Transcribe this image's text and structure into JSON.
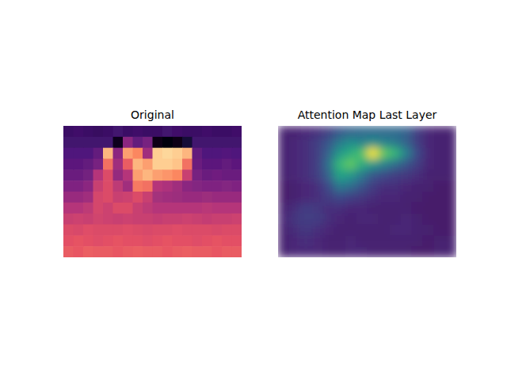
{
  "chart_data": [
    {
      "type": "heatmap",
      "title": "Original",
      "color": "magma",
      "zlim": [
        0,
        1
      ],
      "tick_labels": false,
      "cells": [
        [
          0.2,
          0.21,
          0.2,
          0.19,
          0.2,
          0.22,
          0.2,
          0.21,
          0.2,
          0.2,
          0.22,
          0.21,
          0.2,
          0.2,
          0.21,
          0.2,
          0.2,
          0.21
        ],
        [
          0.22,
          0.22,
          0.22,
          0.22,
          0.22,
          0.05,
          0.4,
          0.3,
          0.35,
          0.03,
          0.02,
          0.03,
          0.1,
          0.22,
          0.22,
          0.22,
          0.22,
          0.22
        ],
        [
          0.25,
          0.25,
          0.25,
          0.3,
          0.85,
          0.4,
          0.8,
          0.75,
          0.45,
          0.9,
          0.92,
          0.9,
          0.85,
          0.3,
          0.25,
          0.25,
          0.26,
          0.25
        ],
        [
          0.28,
          0.28,
          0.3,
          0.35,
          0.7,
          0.45,
          0.65,
          0.85,
          0.8,
          0.9,
          0.9,
          0.88,
          0.7,
          0.32,
          0.28,
          0.28,
          0.3,
          0.28
        ],
        [
          0.32,
          0.32,
          0.34,
          0.5,
          0.6,
          0.42,
          0.5,
          0.8,
          0.85,
          0.8,
          0.78,
          0.75,
          0.55,
          0.35,
          0.32,
          0.33,
          0.32,
          0.32
        ],
        [
          0.37,
          0.37,
          0.4,
          0.55,
          0.6,
          0.52,
          0.45,
          0.72,
          0.7,
          0.5,
          0.48,
          0.45,
          0.4,
          0.38,
          0.37,
          0.37,
          0.38,
          0.37
        ],
        [
          0.43,
          0.43,
          0.45,
          0.58,
          0.6,
          0.55,
          0.56,
          0.6,
          0.55,
          0.46,
          0.45,
          0.44,
          0.43,
          0.43,
          0.44,
          0.43,
          0.43,
          0.43
        ],
        [
          0.5,
          0.5,
          0.52,
          0.58,
          0.56,
          0.6,
          0.6,
          0.55,
          0.52,
          0.5,
          0.5,
          0.5,
          0.5,
          0.5,
          0.51,
          0.5,
          0.5,
          0.5
        ],
        [
          0.55,
          0.56,
          0.55,
          0.57,
          0.56,
          0.55,
          0.56,
          0.55,
          0.55,
          0.54,
          0.55,
          0.55,
          0.56,
          0.55,
          0.54,
          0.55,
          0.55,
          0.56
        ],
        [
          0.6,
          0.59,
          0.61,
          0.6,
          0.6,
          0.6,
          0.61,
          0.6,
          0.59,
          0.6,
          0.6,
          0.61,
          0.6,
          0.6,
          0.6,
          0.59,
          0.6,
          0.6
        ],
        [
          0.62,
          0.63,
          0.62,
          0.61,
          0.62,
          0.63,
          0.62,
          0.62,
          0.61,
          0.62,
          0.63,
          0.62,
          0.62,
          0.61,
          0.62,
          0.63,
          0.62,
          0.62
        ],
        [
          0.65,
          0.64,
          0.66,
          0.65,
          0.65,
          0.64,
          0.65,
          0.66,
          0.65,
          0.65,
          0.64,
          0.65,
          0.66,
          0.65,
          0.65,
          0.64,
          0.65,
          0.65
        ]
      ]
    },
    {
      "type": "heatmap",
      "title": "Attention Map Last Layer",
      "color": "viridis",
      "zlim": [
        0,
        1
      ],
      "tick_labels": false,
      "cells": [
        [
          0.1,
          0.1,
          0.12,
          0.15,
          0.2,
          0.3,
          0.35,
          0.38,
          0.38,
          0.38,
          0.38,
          0.35,
          0.2,
          0.12,
          0.1,
          0.1
        ],
        [
          0.1,
          0.12,
          0.15,
          0.2,
          0.3,
          0.45,
          0.55,
          0.5,
          0.55,
          0.5,
          0.45,
          0.35,
          0.2,
          0.12,
          0.1,
          0.1
        ],
        [
          0.1,
          0.12,
          0.15,
          0.2,
          0.35,
          0.6,
          0.7,
          0.8,
          1.0,
          0.85,
          0.75,
          0.5,
          0.25,
          0.12,
          0.1,
          0.1
        ],
        [
          0.1,
          0.12,
          0.15,
          0.2,
          0.4,
          0.75,
          0.85,
          0.7,
          0.6,
          0.5,
          0.4,
          0.3,
          0.2,
          0.12,
          0.1,
          0.1
        ],
        [
          0.1,
          0.12,
          0.15,
          0.2,
          0.35,
          0.65,
          0.6,
          0.45,
          0.3,
          0.25,
          0.2,
          0.18,
          0.15,
          0.1,
          0.1,
          0.1
        ],
        [
          0.08,
          0.1,
          0.12,
          0.15,
          0.25,
          0.45,
          0.4,
          0.3,
          0.2,
          0.15,
          0.15,
          0.12,
          0.1,
          0.1,
          0.08,
          0.08
        ],
        [
          0.08,
          0.1,
          0.12,
          0.15,
          0.2,
          0.25,
          0.22,
          0.18,
          0.15,
          0.12,
          0.12,
          0.1,
          0.1,
          0.08,
          0.08,
          0.08
        ],
        [
          0.1,
          0.15,
          0.2,
          0.18,
          0.15,
          0.15,
          0.12,
          0.12,
          0.1,
          0.1,
          0.1,
          0.1,
          0.08,
          0.08,
          0.08,
          0.08
        ],
        [
          0.12,
          0.18,
          0.2,
          0.2,
          0.15,
          0.12,
          0.1,
          0.12,
          0.12,
          0.1,
          0.1,
          0.12,
          0.1,
          0.08,
          0.08,
          0.08
        ],
        [
          0.1,
          0.15,
          0.18,
          0.15,
          0.12,
          0.1,
          0.1,
          0.1,
          0.1,
          0.1,
          0.12,
          0.12,
          0.1,
          0.1,
          0.08,
          0.08
        ],
        [
          0.1,
          0.12,
          0.15,
          0.12,
          0.1,
          0.1,
          0.12,
          0.1,
          0.1,
          0.1,
          0.1,
          0.1,
          0.1,
          0.08,
          0.1,
          0.1
        ],
        [
          0.1,
          0.12,
          0.12,
          0.12,
          0.1,
          0.1,
          0.12,
          0.12,
          0.1,
          0.1,
          0.1,
          0.1,
          0.08,
          0.08,
          0.1,
          0.1
        ]
      ]
    }
  ]
}
